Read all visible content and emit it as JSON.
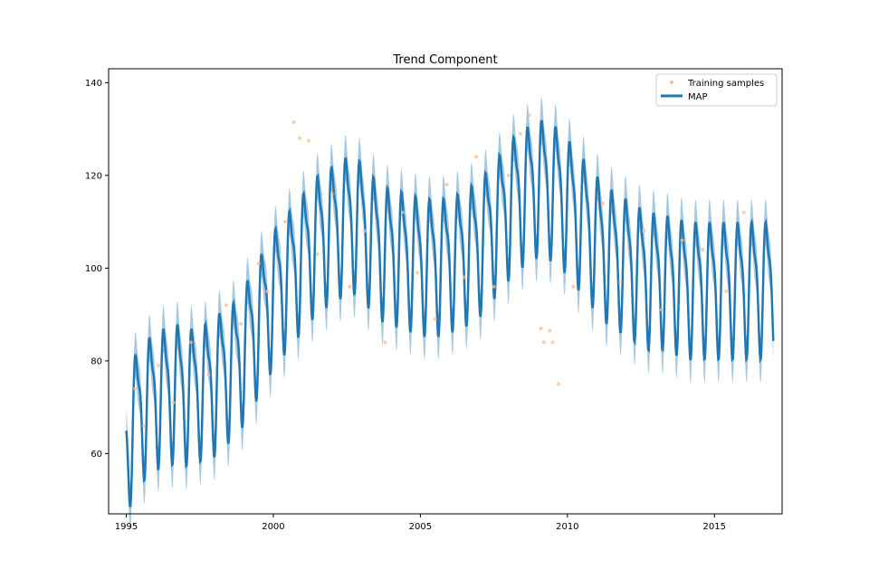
{
  "chart_data": {
    "type": "line",
    "title": "Trend Component",
    "xlabel": "",
    "ylabel": "",
    "xlim": [
      1994.4,
      2017.3
    ],
    "ylim": [
      47,
      143
    ],
    "x_ticks": [
      1995,
      2000,
      2005,
      2010,
      2015
    ],
    "x_tick_labels": [
      "1995",
      "2000",
      "2005",
      "2010",
      "2015"
    ],
    "y_ticks": [
      60,
      80,
      100,
      120,
      140
    ],
    "y_tick_labels": [
      "60",
      "80",
      "100",
      "120",
      "140"
    ],
    "grid": false,
    "legend": {
      "placement": "top-right",
      "entries": [
        {
          "label": "Training samples",
          "marker": "dot",
          "color": "#ffbb88"
        },
        {
          "label": "MAP",
          "marker": "line",
          "color": "#1f77b4"
        }
      ]
    },
    "x_start": 1995.0,
    "x_step": 0.25,
    "series": [
      {
        "name": "MAP",
        "color": "#1f77b4",
        "band_width": 5,
        "trend": [
          62,
          68,
          70,
          72,
          73,
          74,
          74,
          75,
          74,
          74,
          75,
          75,
          76,
          78,
          79,
          80,
          83,
          86,
          89,
          92,
          95,
          97,
          99,
          101,
          103,
          105,
          107,
          108,
          109,
          110,
          111,
          111,
          110,
          108,
          106,
          105,
          104,
          104,
          103,
          103,
          102,
          102,
          102,
          102,
          103,
          103,
          104,
          105,
          106,
          108,
          110,
          112,
          114,
          116,
          117,
          118,
          119,
          119,
          118,
          117,
          115,
          113,
          111,
          109,
          107,
          105,
          104,
          103,
          102,
          101,
          100,
          99,
          99,
          99,
          98,
          98,
          97,
          97,
          97,
          97,
          97,
          97,
          97,
          97,
          97,
          97,
          97,
          97,
          97
        ],
        "amplitude": 13
      }
    ],
    "training_samples": [
      {
        "x": 1995.3,
        "y": 74
      },
      {
        "x": 1995.6,
        "y": 66
      },
      {
        "x": 1996.1,
        "y": 79
      },
      {
        "x": 1996.6,
        "y": 71
      },
      {
        "x": 1997.2,
        "y": 84
      },
      {
        "x": 1997.8,
        "y": 77
      },
      {
        "x": 1998.4,
        "y": 92
      },
      {
        "x": 1998.9,
        "y": 88
      },
      {
        "x": 1999.5,
        "y": 101
      },
      {
        "x": 1999.8,
        "y": 95
      },
      {
        "x": 2000.4,
        "y": 110
      },
      {
        "x": 2000.7,
        "y": 131.5
      },
      {
        "x": 2000.9,
        "y": 128
      },
      {
        "x": 2001.2,
        "y": 127.5
      },
      {
        "x": 2001.5,
        "y": 103
      },
      {
        "x": 2002.0,
        "y": 116
      },
      {
        "x": 2002.6,
        "y": 96
      },
      {
        "x": 2003.1,
        "y": 108
      },
      {
        "x": 2003.8,
        "y": 84
      },
      {
        "x": 2004.4,
        "y": 112
      },
      {
        "x": 2004.9,
        "y": 99
      },
      {
        "x": 2005.5,
        "y": 89
      },
      {
        "x": 2005.9,
        "y": 118
      },
      {
        "x": 2006.5,
        "y": 98
      },
      {
        "x": 2006.9,
        "y": 124
      },
      {
        "x": 2007.5,
        "y": 96
      },
      {
        "x": 2008.0,
        "y": 120
      },
      {
        "x": 2008.4,
        "y": 129
      },
      {
        "x": 2008.7,
        "y": 133
      },
      {
        "x": 2009.1,
        "y": 87
      },
      {
        "x": 2009.2,
        "y": 84
      },
      {
        "x": 2009.4,
        "y": 86.5
      },
      {
        "x": 2009.5,
        "y": 84
      },
      {
        "x": 2009.7,
        "y": 75
      },
      {
        "x": 2010.2,
        "y": 96
      },
      {
        "x": 2011.2,
        "y": 114
      },
      {
        "x": 2011.8,
        "y": 97
      },
      {
        "x": 2012.6,
        "y": 108
      },
      {
        "x": 2013.2,
        "y": 91
      },
      {
        "x": 2013.9,
        "y": 106
      },
      {
        "x": 2014.6,
        "y": 104
      },
      {
        "x": 2015.4,
        "y": 95
      },
      {
        "x": 2016.0,
        "y": 112
      }
    ]
  }
}
